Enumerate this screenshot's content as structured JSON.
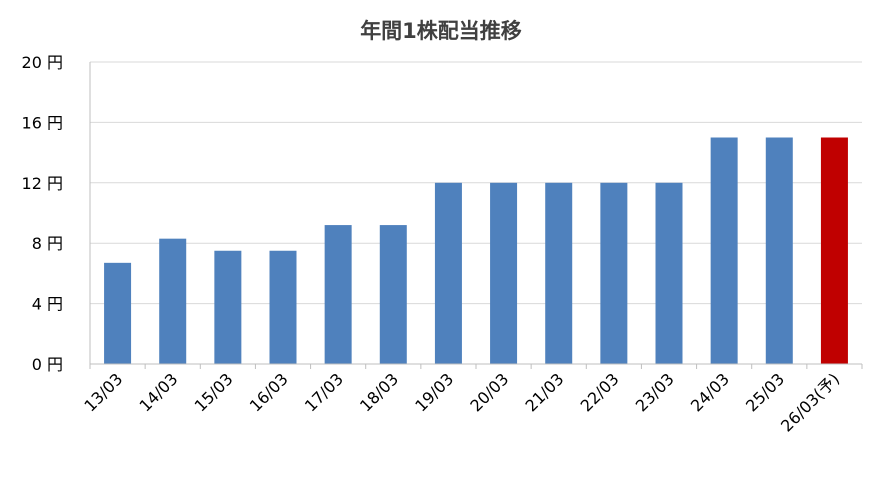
{
  "chart_data": {
    "type": "bar",
    "title": "年間1株配当推移",
    "categories": [
      "13/03",
      "14/03",
      "15/03",
      "16/03",
      "17/03",
      "18/03",
      "19/03",
      "20/03",
      "21/03",
      "22/03",
      "23/03",
      "24/03",
      "25/03",
      "26/03(予)"
    ],
    "series": [
      {
        "values": [
          6.7,
          8.3,
          7.5,
          7.5,
          9.2,
          9.2,
          12,
          12,
          12,
          12,
          12,
          15,
          15,
          15
        ]
      }
    ],
    "highlight_index": 13,
    "ylim": [
      0,
      20
    ],
    "yticks": [
      0,
      4,
      8,
      12,
      16,
      20
    ],
    "ytick_labels": [
      "0 円",
      "4 円",
      "8 円",
      "12 円",
      "16 円",
      "20 円"
    ],
    "xlabel": "",
    "ylabel": "",
    "grid": true,
    "colors": {
      "bar": "#4f81bd",
      "highlight": "#c00000",
      "grid": "#d9d9d9",
      "axis": "#bfbfbf"
    }
  }
}
